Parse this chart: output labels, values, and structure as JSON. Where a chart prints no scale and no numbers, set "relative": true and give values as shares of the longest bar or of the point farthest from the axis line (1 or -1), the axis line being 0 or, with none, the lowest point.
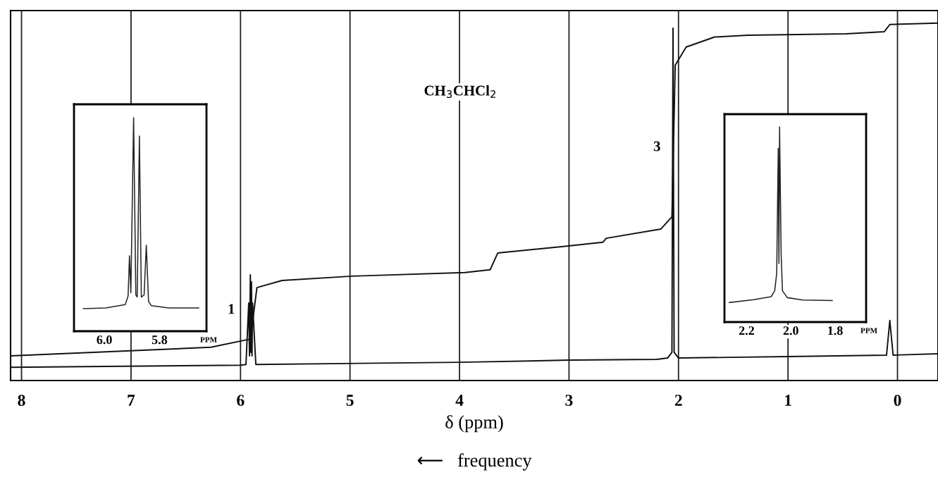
{
  "chart_data": [
    {
      "type": "line",
      "relative": true,
      "xlabel": "δ (ppm)",
      "xlim": [
        8.1,
        -0.37
      ],
      "xticks": [
        8,
        7,
        6,
        5,
        4,
        3,
        2,
        1,
        0
      ],
      "grid": "x",
      "tick_labels": "x",
      "series": [
        {
          "color": "#111111",
          "x": [
            8.1,
            6.0,
            5.95,
            5.925,
            5.918,
            5.91,
            5.905,
            5.9,
            5.895,
            5.89,
            5.86,
            4.0,
            3.0,
            2.2,
            2.1,
            2.06,
            2.05,
            2.04,
            2.0,
            1.0,
            0.1,
            0.07,
            0.04,
            -0.37
          ],
          "values": [
            0.037,
            0.043,
            0.045,
            0.217,
            0.069,
            0.296,
            0.079,
            0.276,
            0.069,
            0.217,
            0.045,
            0.051,
            0.057,
            0.059,
            0.063,
            0.079,
            0.986,
            0.079,
            0.063,
            0.067,
            0.071,
            0.168,
            0.071,
            0.075
          ]
        },
        {
          "color": "#111111",
          "x": [
            8.1,
            6.27,
            5.91,
            5.85,
            5.62,
            4.98,
            3.95,
            3.72,
            3.65,
            3.05,
            2.69,
            2.66,
            2.16,
            2.06,
            2.03,
            1.93,
            1.67,
            1.37,
            0.47,
            0.12,
            0.07,
            -0.37
          ],
          "values": [
            0.069,
            0.093,
            0.116,
            0.26,
            0.28,
            0.292,
            0.302,
            0.31,
            0.357,
            0.375,
            0.387,
            0.398,
            0.424,
            0.458,
            0.882,
            0.933,
            0.961,
            0.966,
            0.97,
            0.976,
            0.996,
            1.0
          ]
        }
      ],
      "annotations": [
        "1",
        "3",
        "CH$_{3}$CHCl$_{2}$",
        "⟵   frequency"
      ]
    },
    {
      "type": "line",
      "relative": true,
      "xlabel": "PPM",
      "xlim": [
        6.11,
        5.63
      ],
      "xticks": [
        {
          "value": 6.0,
          "label": "6.0"
        },
        {
          "value": 5.8,
          "label": "5.8"
        }
      ],
      "tick_labels": "x",
      "series": [
        {
          "color": "#222222",
          "x": [
            6.076,
            5.995,
            5.924,
            5.914,
            5.909,
            5.904,
            5.894,
            5.886,
            5.881,
            5.873,
            5.866,
            5.856,
            5.848,
            5.84,
            5.83,
            5.767,
            5.658
          ],
          "values": [
            0.106,
            0.109,
            0.125,
            0.165,
            0.353,
            0.18,
            1.0,
            0.17,
            0.16,
            0.914,
            0.16,
            0.17,
            0.403,
            0.14,
            0.12,
            0.109,
            0.109
          ]
        }
      ]
    },
    {
      "type": "line",
      "relative": true,
      "xlabel": "PPM",
      "xlim": [
        2.3,
        1.66
      ],
      "xticks": [
        {
          "value": 2.2,
          "label": "2.2"
        },
        {
          "value": 2.0,
          "label": "2.0"
        },
        {
          "value": 1.8,
          "label": "1.8"
        }
      ],
      "tick_labels": "x",
      "series": [
        {
          "color": "#222222",
          "x": [
            2.278,
            2.168,
            2.089,
            2.073,
            2.064,
            2.057,
            2.054,
            2.051,
            2.044,
            2.038,
            2.016,
            1.946,
            1.813
          ],
          "values": [
            0.1,
            0.115,
            0.13,
            0.16,
            0.25,
            0.89,
            0.3,
            1.0,
            0.35,
            0.16,
            0.125,
            0.113,
            0.11
          ]
        }
      ]
    }
  ]
}
